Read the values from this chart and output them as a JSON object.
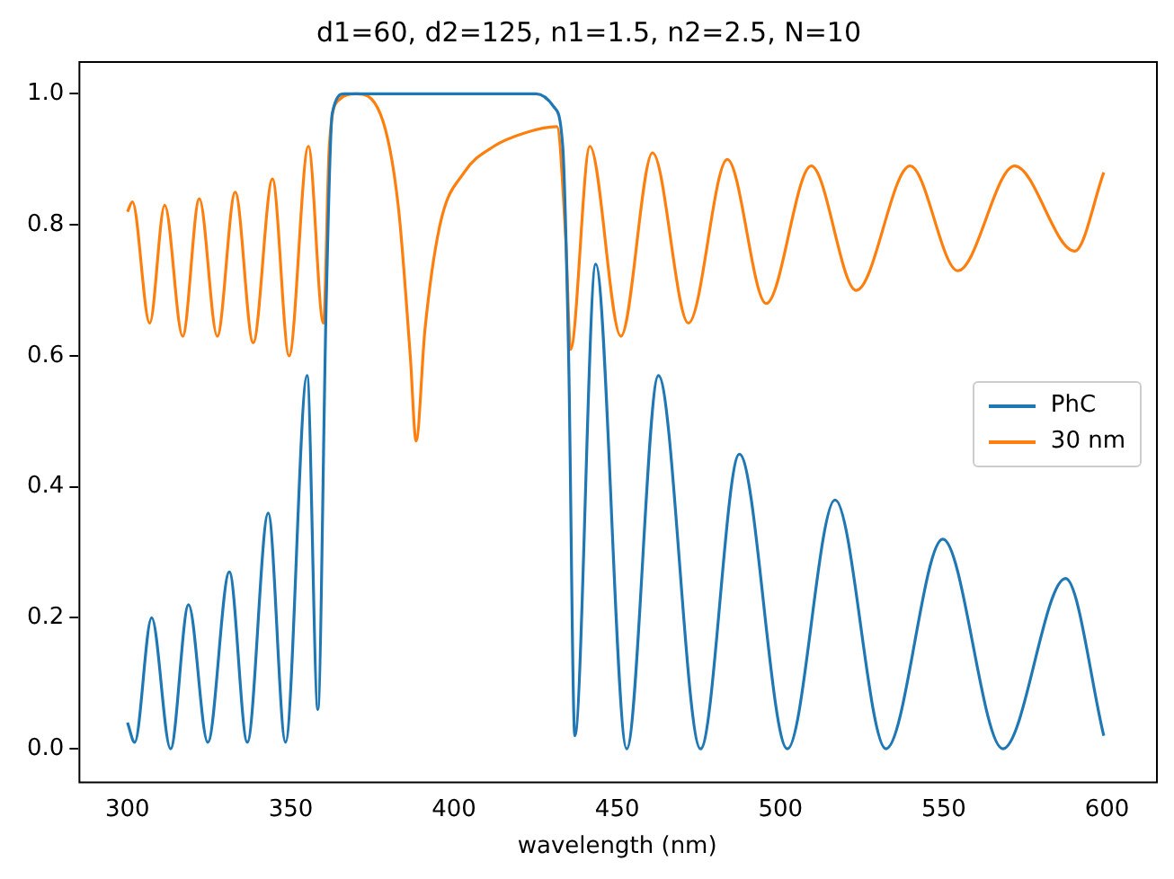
{
  "chart_data": {
    "type": "line",
    "title": "d1=60, d2=125, n1=1.5, n2=2.5, N=10",
    "xlabel": "wavelength (nm)",
    "xlim": [
      285,
      615
    ],
    "xticks": [
      300,
      350,
      400,
      450,
      500,
      550,
      600
    ],
    "ylim": [
      -0.05,
      1.05
    ],
    "yticks": [
      {
        "value": 0,
        "label": "0.0"
      },
      {
        "value": 0.2,
        "label": "0.2"
      },
      {
        "value": 0.4,
        "label": "0.4"
      },
      {
        "value": 0.6,
        "label": "0.6"
      },
      {
        "value": 0.8,
        "label": "0.8"
      },
      {
        "value": 1,
        "label": "1.0"
      }
    ],
    "grid": false,
    "legend": "right",
    "marker": "none",
    "line_style": "solid",
    "series": [
      {
        "name": "PhC",
        "color": "#1f77b4",
        "x": [
          300,
          302.2,
          307.4,
          313.2,
          318.7,
          324.6,
          331.2,
          336.7,
          343.1,
          348.4,
          355,
          358.3,
          360.9,
          362.7,
          366.4,
          400,
          425.1,
          430.6,
          433.3,
          435.1,
          437,
          443.4,
          452.9,
          462.6,
          475.5,
          487.4,
          502.1,
          516.7,
          532.3,
          549.7,
          568.1,
          587.3,
          599
        ],
        "values": [
          0.04,
          0.01,
          0.2,
          0.0,
          0.22,
          0.01,
          0.27,
          0.01,
          0.36,
          0.01,
          0.57,
          0.06,
          0.69,
          0.97,
          1.0,
          1.0,
          1.0,
          0.98,
          0.92,
          0.6,
          0.02,
          0.74,
          0.0,
          0.57,
          0.0,
          0.45,
          0.0,
          0.38,
          0.0,
          0.32,
          0.0,
          0.26,
          0.02
        ]
      },
      {
        "name": "30 nm",
        "color": "#ff7f0e",
        "x": [
          300,
          301.5,
          306.8,
          311.4,
          316.9,
          322,
          327.5,
          333,
          338.5,
          344.4,
          349.5,
          355.4,
          360,
          361.8,
          364.6,
          370,
          377.4,
          382.9,
          386.6,
          388.4,
          391.1,
          395.7,
          403.1,
          412.2,
          421.4,
          431.5,
          434.2,
          435.7,
          441.6,
          451.1,
          460.8,
          471.8,
          483.7,
          495.6,
          509.4,
          523.2,
          539.7,
          554.3,
          571.7,
          590.1,
          599
        ],
        "values": [
          0.82,
          0.835,
          0.65,
          0.83,
          0.63,
          0.84,
          0.63,
          0.85,
          0.62,
          0.87,
          0.6,
          0.92,
          0.65,
          0.92,
          0.99,
          1.0,
          0.97,
          0.83,
          0.6,
          0.47,
          0.64,
          0.8,
          0.88,
          0.92,
          0.94,
          0.95,
          0.78,
          0.61,
          0.92,
          0.63,
          0.91,
          0.65,
          0.9,
          0.68,
          0.89,
          0.7,
          0.89,
          0.73,
          0.89,
          0.76,
          0.88
        ]
      }
    ]
  }
}
